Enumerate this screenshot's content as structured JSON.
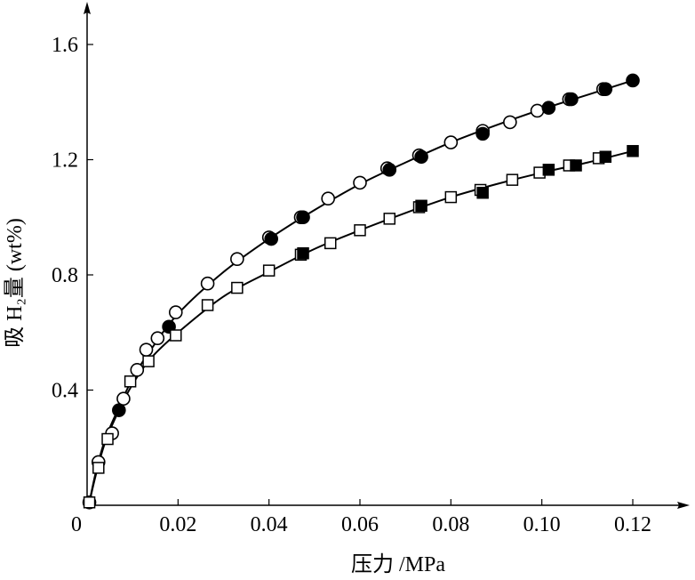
{
  "chart_data": {
    "type": "scatter",
    "xlabel": "压力 /MPa",
    "ylabel": "吸 H₂量 (wt%)",
    "xlim": [
      0,
      0.13
    ],
    "ylim": [
      0,
      1.6
    ],
    "x_ticks": [
      0,
      0.02,
      0.04,
      0.06,
      0.08,
      0.1,
      0.12
    ],
    "x_tick_labels": [
      "0",
      "0.02",
      "0.04",
      "0.06",
      "0.08",
      "0.10",
      "0.12"
    ],
    "y_ticks": [
      0.4,
      0.8,
      1.2,
      1.6
    ],
    "y_tick_labels": [
      "0.4",
      "0.8",
      "1.2",
      "1.6"
    ],
    "grid": false,
    "colors": {
      "stroke": "#000000",
      "open_fill": "#ffffff",
      "filled": "#000000"
    },
    "series": [
      {
        "marker": "circle-open",
        "curve": "upper",
        "x": [
          0.0005,
          0.0025,
          0.0055,
          0.008,
          0.011,
          0.013,
          0.0155,
          0.0195,
          0.0265,
          0.033,
          0.04,
          0.047,
          0.053,
          0.06,
          0.066,
          0.073,
          0.08,
          0.087,
          0.093,
          0.099,
          0.106,
          0.1135
        ],
        "y": [
          0.01,
          0.15,
          0.25,
          0.37,
          0.47,
          0.54,
          0.58,
          0.67,
          0.77,
          0.855,
          0.93,
          1.0,
          1.065,
          1.12,
          1.17,
          1.215,
          1.26,
          1.3,
          1.33,
          1.37,
          1.41,
          1.445
        ]
      },
      {
        "marker": "circle-filled",
        "curve": "upper",
        "x": [
          0.007,
          0.018,
          0.0405,
          0.0475,
          0.0665,
          0.0735,
          0.087,
          0.1015,
          0.1065,
          0.114,
          0.12
        ],
        "y": [
          0.33,
          0.62,
          0.925,
          1.0,
          1.165,
          1.21,
          1.29,
          1.38,
          1.41,
          1.445,
          1.475
        ]
      },
      {
        "marker": "square-open",
        "curve": "lower",
        "x": [
          0.0005,
          0.0025,
          0.0045,
          0.0095,
          0.0135,
          0.0195,
          0.0265,
          0.033,
          0.04,
          0.047,
          0.0535,
          0.06,
          0.0665,
          0.073,
          0.08,
          0.0865,
          0.0935,
          0.0995,
          0.106,
          0.1125
        ],
        "y": [
          0.01,
          0.13,
          0.23,
          0.43,
          0.5,
          0.59,
          0.695,
          0.755,
          0.815,
          0.87,
          0.91,
          0.955,
          0.995,
          1.035,
          1.07,
          1.095,
          1.13,
          1.155,
          1.18,
          1.205
        ]
      },
      {
        "marker": "square-filled",
        "curve": "lower",
        "x": [
          0.0475,
          0.0735,
          0.087,
          0.1015,
          0.1075,
          0.114,
          0.12
        ],
        "y": [
          0.875,
          1.04,
          1.085,
          1.165,
          1.18,
          1.21,
          1.23
        ]
      }
    ],
    "curves": {
      "upper": {
        "x": [
          0.0005,
          0.002,
          0.004,
          0.007,
          0.01,
          0.014,
          0.02,
          0.03,
          0.04,
          0.05,
          0.06,
          0.07,
          0.08,
          0.09,
          0.1,
          0.11,
          0.12
        ],
        "y": [
          0.01,
          0.12,
          0.23,
          0.34,
          0.44,
          0.54,
          0.665,
          0.81,
          0.925,
          1.025,
          1.115,
          1.19,
          1.26,
          1.32,
          1.375,
          1.425,
          1.475
        ]
      },
      "lower": {
        "x": [
          0.0005,
          0.002,
          0.004,
          0.007,
          0.01,
          0.014,
          0.02,
          0.03,
          0.04,
          0.05,
          0.06,
          0.07,
          0.08,
          0.09,
          0.1,
          0.11,
          0.12
        ],
        "y": [
          0.01,
          0.11,
          0.22,
          0.33,
          0.42,
          0.51,
          0.6,
          0.725,
          0.81,
          0.89,
          0.955,
          1.015,
          1.07,
          1.115,
          1.155,
          1.19,
          1.23
        ]
      }
    }
  }
}
